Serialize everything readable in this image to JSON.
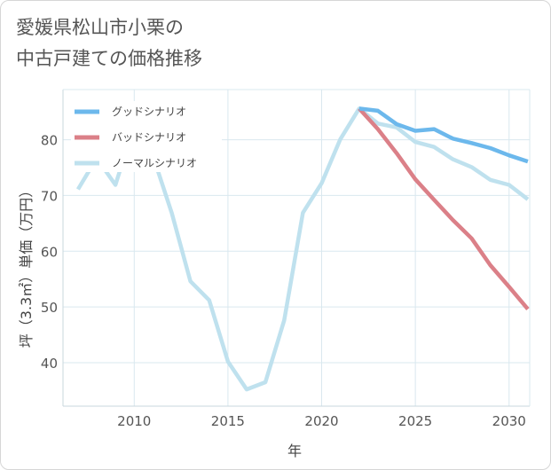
{
  "page": {
    "title_line1": "愛媛県松山市小栗の",
    "title_line2": "中古戸建ての価格推移"
  },
  "colors": {
    "good": "#6cb8ec",
    "bad": "#db8088",
    "normal": "#bfe1ee",
    "grid": "#d9e8ef"
  },
  "chart_data": {
    "type": "line",
    "title": "愛媛県松山市小栗の中古戸建ての価格推移",
    "xlabel": "年",
    "ylabel": "坪（3.3㎡）単価（万円）",
    "xlim": [
      2006.2,
      2031.1
    ],
    "ylim": [
      32.2,
      89.0
    ],
    "xticks": [
      2010,
      2015,
      2020,
      2025,
      2030
    ],
    "yticks": [
      40,
      50,
      60,
      70,
      80
    ],
    "legend_position": "top-left",
    "series": [
      {
        "name": "グッドシナリオ",
        "color_key": "good",
        "x": [
          2022,
          2023,
          2024,
          2025,
          2026,
          2027,
          2028,
          2029,
          2030,
          2031
        ],
        "y": [
          85.6,
          85.2,
          82.8,
          81.6,
          81.9,
          80.2,
          79.4,
          78.5,
          77.2,
          76.1
        ]
      },
      {
        "name": "バッドシナリオ",
        "color_key": "bad",
        "x": [
          2022,
          2023,
          2024,
          2025,
          2026,
          2027,
          2028,
          2029,
          2030,
          2031
        ],
        "y": [
          85.6,
          81.9,
          77.6,
          72.9,
          69.2,
          65.6,
          62.3,
          57.5,
          53.6,
          49.6
        ]
      },
      {
        "name": "ノーマルシナリオ",
        "color_key": "normal",
        "x": [
          2007,
          2008,
          2009,
          2010,
          2011,
          2012,
          2013,
          2014,
          2015,
          2016,
          2017,
          2018,
          2019,
          2020,
          2021,
          2022,
          2023,
          2024,
          2025,
          2026,
          2027,
          2028,
          2029,
          2030,
          2031
        ],
        "y": [
          71.1,
          76.7,
          71.9,
          82.6,
          77.1,
          66.9,
          54.6,
          51.2,
          40.2,
          35.2,
          36.5,
          47.6,
          66.9,
          72.2,
          80.1,
          85.6,
          82.9,
          82.2,
          79.6,
          78.7,
          76.5,
          75.1,
          72.8,
          71.9,
          69.3
        ]
      }
    ]
  }
}
